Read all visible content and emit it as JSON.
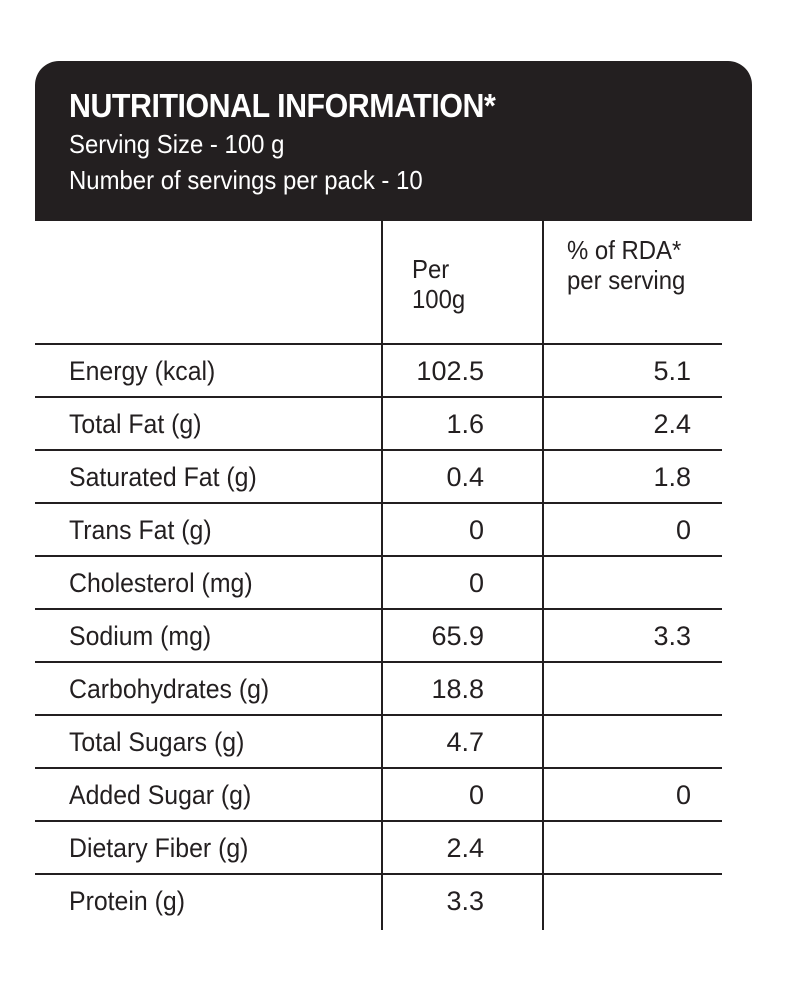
{
  "header": {
    "title": "NUTRITIONAL INFORMATION*",
    "serving_size": "Serving Size - 100 g",
    "servings_per_pack": "Number of servings per pack - 10"
  },
  "columns": {
    "per_line1": "Per",
    "per_line2": "100g",
    "rda_line1": "% of RDA*",
    "rda_line2": "per serving"
  },
  "rows": [
    {
      "name": "Energy (kcal)",
      "per_100g": "102.5",
      "rda": "5.1"
    },
    {
      "name": "Total Fat (g)",
      "per_100g": "1.6",
      "rda": "2.4"
    },
    {
      "name": "Saturated Fat (g)",
      "per_100g": "0.4",
      "rda": "1.8"
    },
    {
      "name": "Trans Fat (g)",
      "per_100g": "0",
      "rda": "0"
    },
    {
      "name": "Cholesterol (mg)",
      "per_100g": "0",
      "rda": ""
    },
    {
      "name": "Sodium (mg)",
      "per_100g": "65.9",
      "rda": "3.3"
    },
    {
      "name": "Carbohydrates (g)",
      "per_100g": "18.8",
      "rda": ""
    },
    {
      "name": "Total Sugars (g)",
      "per_100g": "4.7",
      "rda": ""
    },
    {
      "name": "Added Sugar (g)",
      "per_100g": "0",
      "rda": "0"
    },
    {
      "name": "Dietary Fiber (g)",
      "per_100g": "2.4",
      "rda": ""
    },
    {
      "name": "Protein (g)",
      "per_100g": "3.3",
      "rda": ""
    }
  ]
}
